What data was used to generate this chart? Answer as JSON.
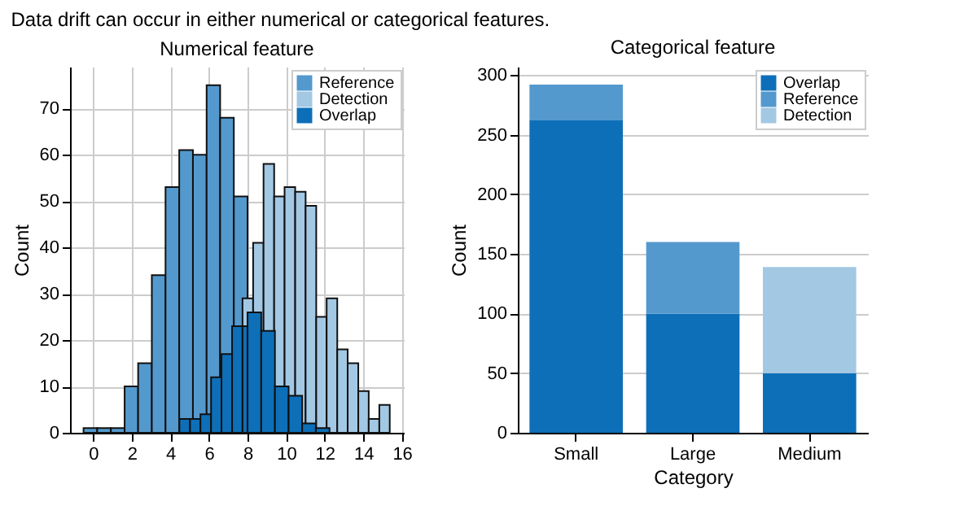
{
  "chart_data": [
    {
      "type": "histogram",
      "title": "Numerical feature",
      "annotations": [
        "Data drift can occur in either numerical or categorical features."
      ],
      "ylabel": "Count",
      "xlim": [
        -1.2,
        16.1
      ],
      "xticks": [
        0,
        2,
        4,
        6,
        8,
        10,
        12,
        14,
        16
      ],
      "ylim": [
        0,
        79
      ],
      "yticks": [
        0,
        10,
        20,
        30,
        40,
        50,
        60,
        70
      ],
      "grid": true,
      "legend": "top right",
      "bins": [
        -0.5,
        0.21,
        0.92,
        1.63,
        2.33,
        3.04,
        3.75,
        4.46,
        5.17,
        5.88,
        6.58,
        7.29,
        8.0
      ],
      "series": [
        {
          "name": "Reference",
          "color": "#5499cd",
          "values": [
            1,
            1,
            1,
            10,
            15,
            34,
            53,
            61,
            60,
            75,
            68,
            51
          ]
        },
        {
          "name": "Detection",
          "color": "#a3c8e4",
          "bins": [
            7.74,
            8.29,
            8.83,
            9.38,
            9.92,
            10.47,
            11.01,
            11.56,
            12.1,
            12.65,
            13.19,
            13.74,
            14.28,
            14.83,
            15.37
          ],
          "values": [
            29,
            41,
            58,
            51,
            53,
            52,
            49,
            25,
            29,
            18,
            15,
            9,
            3,
            6
          ]
        },
        {
          "name": "Overlap",
          "color": "#0d6fb8",
          "bins": [
            4.47,
            5.02,
            5.56,
            6.11,
            6.65,
            7.2,
            7.74,
            8.0,
            8.71,
            9.42,
            10.13,
            10.83,
            11.54,
            12.25
          ],
          "values": [
            3,
            3,
            4,
            12,
            17,
            23,
            23,
            26,
            22,
            10,
            8,
            2,
            1
          ]
        }
      ]
    },
    {
      "type": "bar",
      "title": "Categorical feature",
      "xlabel": "Category",
      "ylabel": "Count",
      "categories": [
        "Small",
        "Large",
        "Medium"
      ],
      "stacked": true,
      "ylim": [
        0,
        307
      ],
      "yticks": [
        0,
        50,
        100,
        150,
        200,
        250,
        300
      ],
      "grid": "y",
      "legend": "top right",
      "series": [
        {
          "name": "Overlap",
          "color": "#0d6fb8",
          "values": [
            262,
            100,
            50
          ]
        },
        {
          "name": "Reference",
          "color": "#5499cd",
          "values": [
            30,
            60,
            null
          ]
        },
        {
          "name": "Detection",
          "color": "#a3c8e4",
          "values": [
            null,
            null,
            89
          ]
        }
      ]
    }
  ]
}
